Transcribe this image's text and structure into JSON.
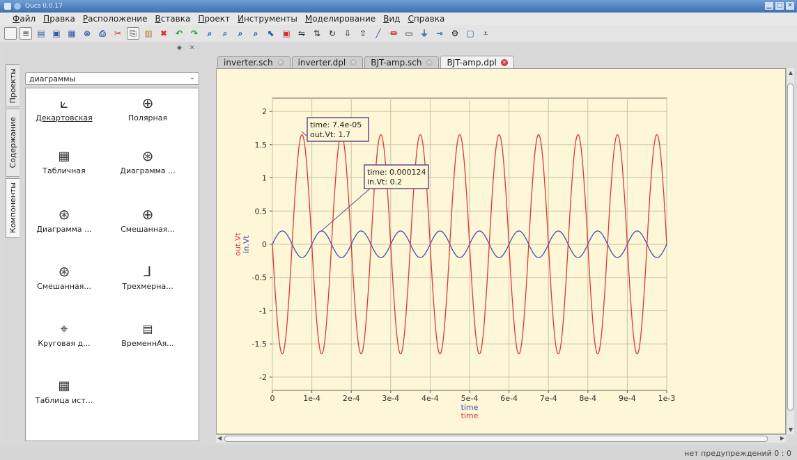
{
  "window": {
    "title": "Qucs 0.0.17"
  },
  "menu": [
    "Файл",
    "Правка",
    "Расположение",
    "Вставка",
    "Проект",
    "Инструменты",
    "Моделирование",
    "Вид",
    "Справка"
  ],
  "left_panel": {
    "vtabs": [
      "Проекты",
      "Содержание",
      "Компоненты"
    ],
    "combo_value": "диаграммы",
    "components": [
      {
        "label": "Декартовская",
        "icon": "cartesian-icon"
      },
      {
        "label": "Полярная",
        "icon": "polar-icon"
      },
      {
        "label": "Табличная",
        "icon": "tabular-icon"
      },
      {
        "label": "Диаграмма ...",
        "icon": "smith-chart-icon"
      },
      {
        "label": "Диаграмма ...",
        "icon": "admittance-chart-icon"
      },
      {
        "label": "Смешанная...",
        "icon": "mixed-polar-smith-icon"
      },
      {
        "label": "Смешанная...",
        "icon": "mixed-smith-polar-icon"
      },
      {
        "label": "Трехмерна...",
        "icon": "3d-cartesian-icon"
      },
      {
        "label": "Круговая д...",
        "icon": "locus-curve-icon"
      },
      {
        "label": "ВременнАя...",
        "icon": "timing-diagram-icon"
      },
      {
        "label": "Таблица ист...",
        "icon": "truth-table-icon"
      }
    ]
  },
  "tabs": [
    {
      "label": "inverter.sch",
      "active": false
    },
    {
      "label": "inverter.dpl",
      "active": false
    },
    {
      "label": "BJT-amp.sch",
      "active": false
    },
    {
      "label": "BJT-amp.dpl",
      "active": true
    }
  ],
  "status": {
    "text": "нет предупреждений 0 : 0"
  },
  "chart_data": {
    "type": "line",
    "xlabel": [
      "time",
      "time"
    ],
    "ylabel": [
      "out.Vt",
      "in.Vt"
    ],
    "xlim": [
      0,
      0.001
    ],
    "ylim": [
      -2.2,
      2.2
    ],
    "x_ticks": [
      "0",
      "1e-4",
      "2e-4",
      "3e-4",
      "4e-4",
      "5e-4",
      "6e-4",
      "7e-4",
      "8e-4",
      "9e-4",
      "1e-3"
    ],
    "y_ticks": [
      "2",
      "1.5",
      "1",
      "0.5",
      "0",
      "-0.5",
      "-1",
      "-1.5",
      "-2"
    ],
    "grid": true,
    "series": [
      {
        "name": "out.Vt",
        "color": "#d83a3a",
        "amplitude": 1.65,
        "frequency_hz": 10000,
        "phase_note": "peaks near 7.4e-05"
      },
      {
        "name": "in.Vt",
        "color": "#3f4fb0",
        "amplitude": 0.2,
        "frequency_hz": 10000,
        "phase_note": "inverted relative to out.Vt"
      }
    ],
    "markers": [
      {
        "line1": "time: 7.4e-05",
        "line2": "out.Vt: 1.7",
        "x": 7.4e-05,
        "y": 1.7
      },
      {
        "line1": "time: 0.000124",
        "line2": "in.Vt: 0.2",
        "x": 0.000124,
        "y": 0.2
      }
    ]
  },
  "icons": {
    "toolbar": [
      "new-doc-icon",
      "open-icon",
      "save-icon",
      "save-all-icon",
      "print-icon",
      "close-icon",
      "cut-icon",
      "copy-icon",
      "paste-icon",
      "delete-icon",
      "undo-icon",
      "redo-icon",
      "zoom-in-icon",
      "zoom-out-icon",
      "zoom-fit-icon",
      "zoom-region-icon",
      "select-icon",
      "edit-icon",
      "wire-icon",
      "port-icon",
      "ground-icon",
      "simulate-icon",
      "dpl-icon",
      "marker-icon"
    ]
  }
}
